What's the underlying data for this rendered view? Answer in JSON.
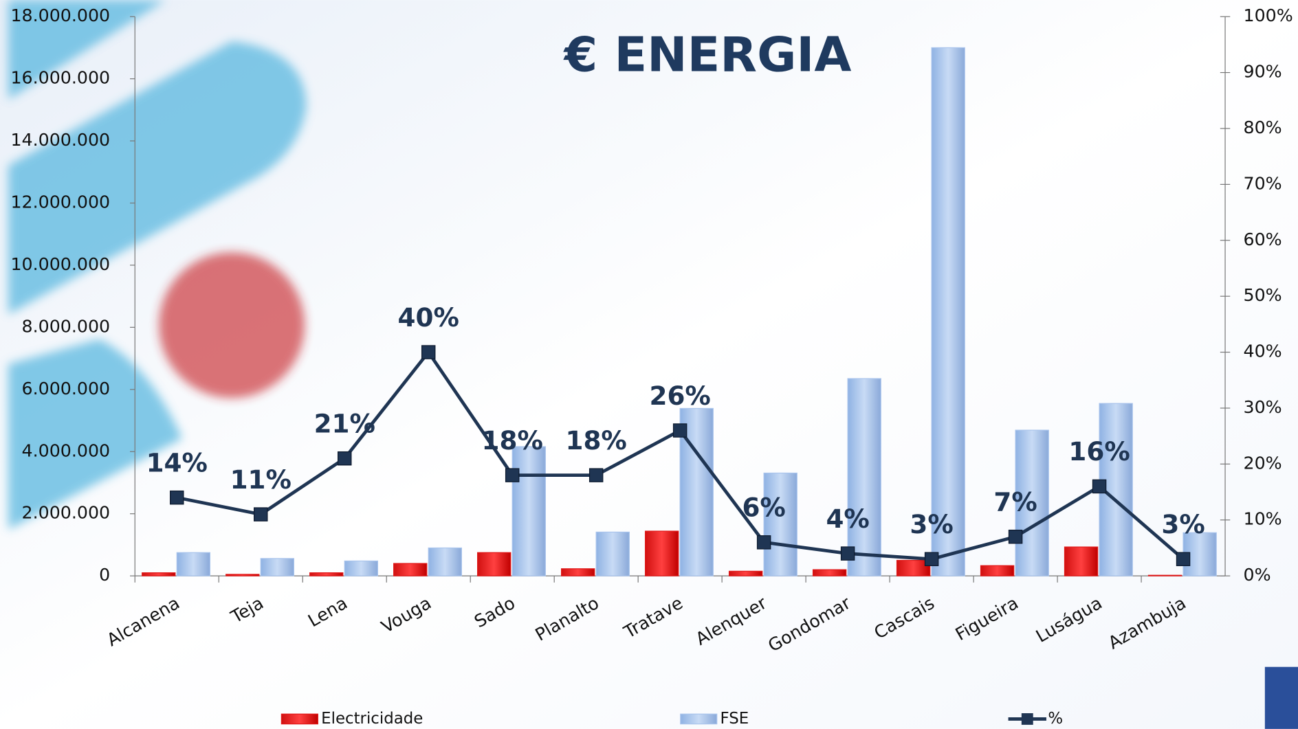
{
  "chart_data": {
    "type": "bar",
    "title": "€  ENERGIA",
    "categories": [
      "Alcanena",
      "Teja",
      "Lena",
      "Vouga",
      "Sado",
      "Planalto",
      "Tratave",
      "Alenquer",
      "Gondomar",
      "Cascais",
      "Figueira",
      "Luságua",
      "Azambuja"
    ],
    "series": [
      {
        "name": "Electricidade",
        "color": "#e01818",
        "values": [
          100000,
          50000,
          100000,
          400000,
          750000,
          230000,
          1440000,
          150000,
          200000,
          500000,
          330000,
          930000,
          20000
        ]
      },
      {
        "name": "FSE",
        "color": "#a9c4ec",
        "values": [
          750000,
          560000,
          480000,
          900000,
          4160000,
          1410000,
          5390000,
          3310000,
          6350000,
          17000000,
          4690000,
          5550000,
          1390000
        ]
      },
      {
        "name": "%",
        "color": "#1f3553",
        "axis": "y2",
        "values": [
          14,
          11,
          21,
          40,
          18,
          18,
          26,
          6,
          4,
          3,
          7,
          16,
          3
        ],
        "value_labels": [
          "14%",
          "11%",
          "21%",
          "40%",
          "18%",
          "18%",
          "26%",
          "6%",
          "4%",
          "3%",
          "7%",
          "16%",
          "3%"
        ]
      }
    ],
    "ylim": [
      0,
      18000000
    ],
    "yticks": [
      0,
      {
        "value": 2000000,
        "label": "2.000.000"
      },
      {
        "value": 4000000,
        "label": "4.000.000"
      },
      {
        "value": 6000000,
        "label": "6.000.000"
      },
      {
        "value": 8000000,
        "label": "8.000.000"
      },
      {
        "value": 10000000,
        "label": "10.000.000"
      },
      {
        "value": 12000000,
        "label": "12.000.000"
      },
      {
        "value": 14000000,
        "label": "14.000.000"
      },
      {
        "value": 16000000,
        "label": "16.000.000"
      },
      {
        "value": 18000000,
        "label": "18.000.000"
      }
    ],
    "y2lim": [
      0,
      100
    ],
    "y2ticks": [
      {
        "value": 0,
        "label": "0%"
      },
      {
        "value": 10,
        "label": "10%"
      },
      {
        "value": 20,
        "label": "20%"
      },
      {
        "value": 30,
        "label": "30%"
      },
      {
        "value": 40,
        "label": "40%"
      },
      {
        "value": 50,
        "label": "50%"
      },
      {
        "value": 60,
        "label": "60%"
      },
      {
        "value": 70,
        "label": "70%"
      },
      {
        "value": 80,
        "label": "80%"
      },
      {
        "value": 90,
        "label": "90%"
      },
      {
        "value": 100,
        "label": "100%"
      }
    ],
    "legend": "bottom"
  }
}
